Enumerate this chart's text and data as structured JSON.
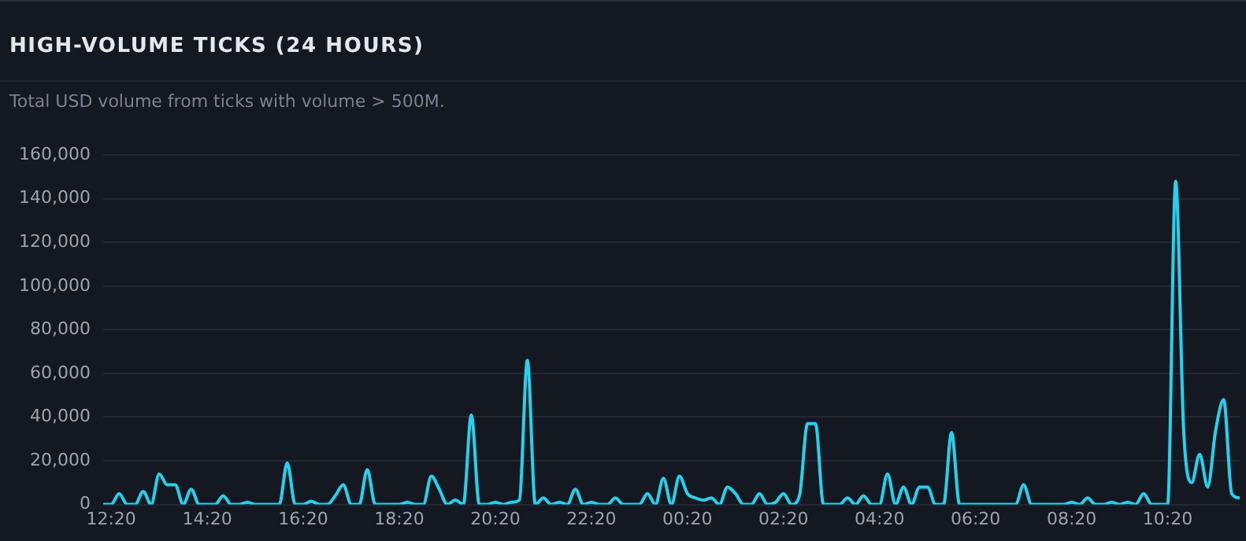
{
  "chart_data": {
    "type": "line",
    "title": "HIGH-VOLUME TICKS (24 HOURS)",
    "subtitle": "Total USD volume from ticks with volume > 500M.",
    "grid": "y",
    "legend": false,
    "marker": "none",
    "line_style": "solid",
    "categories": [
      null,
      "12:20",
      null,
      null,
      null,
      null,
      null,
      null,
      null,
      null,
      null,
      null,
      null,
      "14:20",
      null,
      null,
      null,
      null,
      null,
      null,
      null,
      null,
      null,
      null,
      null,
      "16:20",
      null,
      null,
      null,
      null,
      null,
      null,
      null,
      null,
      null,
      null,
      null,
      "18:20",
      null,
      null,
      null,
      null,
      null,
      null,
      null,
      null,
      null,
      null,
      null,
      "20:20",
      null,
      null,
      null,
      null,
      null,
      null,
      null,
      null,
      null,
      null,
      null,
      "22:20",
      null,
      null,
      null,
      null,
      null,
      null,
      null,
      null,
      null,
      null,
      null,
      "00:20",
      null,
      null,
      null,
      null,
      null,
      null,
      null,
      null,
      null,
      null,
      null,
      "02:20",
      null,
      null,
      null,
      null,
      null,
      null,
      null,
      null,
      null,
      null,
      null,
      "04:20",
      null,
      null,
      null,
      null,
      null,
      null,
      null,
      null,
      null,
      null,
      null,
      "06:20",
      null,
      null,
      null,
      null,
      null,
      null,
      null,
      null,
      null,
      null,
      null,
      "08:20",
      null,
      null,
      null,
      null,
      null,
      null,
      null,
      null,
      null,
      null,
      null,
      "10:20",
      null,
      null,
      null,
      null,
      null,
      null,
      null,
      null,
      null
    ],
    "ylim": [
      0,
      160000
    ],
    "yticks": [
      {
        "value": 0,
        "label": "0"
      },
      {
        "value": 20000,
        "label": "20,000"
      },
      {
        "value": 40000,
        "label": "40,000"
      },
      {
        "value": 60000,
        "label": "60,000"
      },
      {
        "value": 80000,
        "label": "80,000"
      },
      {
        "value": 100000,
        "label": "100,000"
      },
      {
        "value": 120000,
        "label": "120,000"
      },
      {
        "value": 140000,
        "label": "140,000"
      },
      {
        "value": 160000,
        "label": "160,000"
      }
    ],
    "series": [
      {
        "color": "#22d3ee",
        "values": [
          0,
          0,
          5000,
          0,
          0,
          6000,
          0,
          14000,
          9000,
          9000,
          0,
          7000,
          0,
          0,
          0,
          4000,
          0,
          0,
          1000,
          0,
          0,
          0,
          0,
          19000,
          0,
          0,
          1500,
          0,
          0,
          4000,
          9000,
          0,
          0,
          16000,
          0,
          0,
          0,
          0,
          1000,
          0,
          0,
          13000,
          7000,
          0,
          2000,
          0,
          41000,
          0,
          0,
          1000,
          0,
          1000,
          2000,
          66000,
          0,
          3000,
          0,
          1000,
          0,
          7000,
          0,
          1000,
          0,
          0,
          3000,
          0,
          0,
          0,
          5000,
          0,
          12000,
          0,
          13000,
          5000,
          3000,
          2000,
          3000,
          0,
          8000,
          5000,
          0,
          0,
          5000,
          0,
          1000,
          5000,
          0,
          4000,
          37000,
          37000,
          0,
          0,
          0,
          3000,
          0,
          4000,
          0,
          0,
          14000,
          0,
          8000,
          0,
          8000,
          8000,
          0,
          0,
          33000,
          0,
          0,
          0,
          0,
          0,
          0,
          0,
          0,
          9000,
          0,
          0,
          0,
          0,
          0,
          1000,
          0,
          3000,
          0,
          0,
          1000,
          0,
          1000,
          0,
          5000,
          0,
          0,
          0,
          148000,
          34000,
          10000,
          23000,
          8000,
          34000,
          48000,
          5000,
          3000
        ]
      }
    ]
  }
}
